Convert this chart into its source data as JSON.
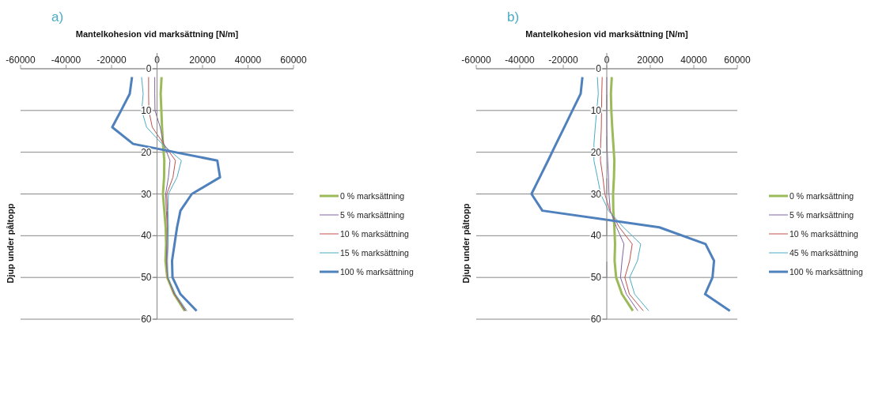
{
  "chart_data": [
    {
      "type": "line",
      "title": "a)",
      "xlabel": "Mantelkohesion vid marksättning [N/m]",
      "ylabel": "Djup under påltopp",
      "xlim": [
        -60000,
        60000
      ],
      "xticks": [
        -60000,
        -40000,
        -20000,
        0,
        20000,
        40000,
        60000
      ],
      "ylim": [
        60,
        0
      ],
      "yticks": [
        0,
        10,
        20,
        30,
        40,
        50,
        60
      ],
      "grid": "y",
      "legend": "right",
      "marker": "none",
      "line_style": "solid",
      "series": [
        {
          "name": "0 % marksättning",
          "color": "#9bbb59",
          "x": [
            2000,
            1600,
            1900,
            2200,
            2600,
            3200,
            3100,
            2600,
            3200,
            3800,
            4000,
            3700,
            4500,
            7500,
            12200
          ],
          "values": [
            2,
            6,
            10,
            14,
            18,
            22,
            26,
            30,
            34,
            38,
            42,
            46,
            50,
            54,
            58
          ]
        },
        {
          "name": "5 % marksättning",
          "color": "#8064a2",
          "x": [
            -1000,
            -1000,
            -900,
            1400,
            2900,
            5700,
            5000,
            3800,
            4100,
            4500,
            4300,
            4100,
            4600,
            7600,
            12400
          ],
          "values": [
            2,
            6,
            10,
            14,
            18,
            22,
            26,
            30,
            34,
            38,
            42,
            46,
            50,
            54,
            58
          ]
        },
        {
          "name": "10 % marksättning",
          "color": "#c0504d",
          "x": [
            -3700,
            -3700,
            -3600,
            -2100,
            2900,
            8100,
            7000,
            4300,
            4500,
            4700,
            4800,
            4300,
            4600,
            7700,
            12700
          ],
          "values": [
            2,
            6,
            10,
            14,
            18,
            22,
            26,
            30,
            34,
            38,
            42,
            46,
            50,
            54,
            58
          ]
        },
        {
          "name": "15 % marksättning",
          "color": "#4bacc6",
          "x": [
            -6800,
            -6100,
            -6700,
            -4600,
            2200,
            10700,
            8800,
            5000,
            4800,
            5000,
            4800,
            4600,
            4800,
            8100,
            13200
          ],
          "values": [
            2,
            6,
            10,
            14,
            18,
            22,
            26,
            30,
            34,
            38,
            42,
            46,
            50,
            54,
            58
          ]
        },
        {
          "name": "100 % marksättning",
          "color": "#4f81bd",
          "x": [
            -11000,
            -12000,
            -15800,
            -19700,
            -10500,
            26500,
            27700,
            15300,
            10300,
            8800,
            7700,
            6600,
            6800,
            10300,
            17400
          ],
          "values": [
            2,
            6,
            10,
            14,
            18,
            22,
            26,
            30,
            34,
            38,
            42,
            46,
            50,
            54,
            58
          ]
        }
      ]
    },
    {
      "type": "line",
      "title": "b)",
      "xlabel": "Mantelkohesion vid marksättning [N/m]",
      "ylabel": "Djup under påltopp",
      "xlim": [
        -60000,
        60000
      ],
      "xticks": [
        -60000,
        -40000,
        -20000,
        0,
        20000,
        40000,
        60000
      ],
      "ylim": [
        60,
        0
      ],
      "yticks": [
        0,
        10,
        20,
        30,
        40,
        50,
        60
      ],
      "grid": "y",
      "legend": "right",
      "marker": "none",
      "line_style": "solid",
      "series": [
        {
          "name": "0 % marksättning",
          "color": "#9bbb59",
          "x": [
            2300,
            1900,
            2100,
            2500,
            3000,
            3500,
            3300,
            2900,
            3000,
            3500,
            3800,
            3600,
            4300,
            7000,
            12000
          ],
          "values": [
            2,
            6,
            10,
            14,
            18,
            22,
            26,
            30,
            34,
            38,
            42,
            46,
            50,
            54,
            58
          ]
        },
        {
          "name": "5 % marksättning",
          "color": "#8064a2",
          "x": [
            0,
            0,
            0,
            0,
            100,
            400,
            800,
            1000,
            1600,
            4500,
            7900,
            7000,
            6300,
            9000,
            14300
          ],
          "values": [
            2,
            6,
            10,
            14,
            18,
            22,
            26,
            30,
            34,
            38,
            42,
            46,
            50,
            54,
            58
          ]
        },
        {
          "name": "10 % marksättning",
          "color": "#c0504d",
          "x": [
            -2100,
            -2300,
            -2400,
            -2500,
            -2800,
            -2900,
            -1800,
            -900,
            1400,
            5800,
            11700,
            10500,
            8300,
            10400,
            16800
          ],
          "values": [
            2,
            6,
            10,
            14,
            18,
            22,
            26,
            30,
            34,
            38,
            42,
            46,
            50,
            54,
            58
          ]
        },
        {
          "name": "45 % marksättning",
          "color": "#4bacc6",
          "x": [
            -4300,
            -3900,
            -4600,
            -5300,
            -5900,
            -5900,
            -4300,
            -2800,
            800,
            7700,
            15600,
            14100,
            10500,
            12800,
            19300
          ],
          "values": [
            2,
            6,
            10,
            14,
            18,
            22,
            26,
            30,
            34,
            38,
            42,
            46,
            50,
            54,
            58
          ]
        },
        {
          "name": "100 % marksättning",
          "color": "#4f81bd",
          "x": [
            -11200,
            -12000,
            -15800,
            -19500,
            -23300,
            -27000,
            -30800,
            -34600,
            -29600,
            24200,
            45400,
            49300,
            48600,
            45200,
            56600
          ],
          "values": [
            2,
            6,
            10,
            14,
            18,
            22,
            26,
            30,
            34,
            38,
            42,
            46,
            50,
            54,
            58
          ]
        }
      ]
    }
  ]
}
